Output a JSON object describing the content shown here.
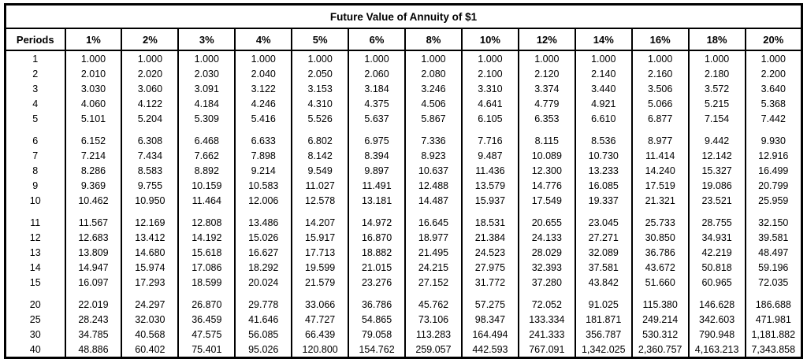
{
  "title": "Future Value of Annuity of $1",
  "table": {
    "periods_header": "Periods",
    "rate_headers": [
      "1%",
      "2%",
      "3%",
      "4%",
      "5%",
      "6%",
      "8%",
      "10%",
      "12%",
      "14%",
      "16%",
      "18%",
      "20%"
    ],
    "groups": [
      {
        "rows": [
          {
            "period": "1",
            "values": [
              "1.000",
              "1.000",
              "1.000",
              "1.000",
              "1.000",
              "1.000",
              "1.000",
              "1.000",
              "1.000",
              "1.000",
              "1.000",
              "1.000",
              "1.000"
            ]
          },
          {
            "period": "2",
            "values": [
              "2.010",
              "2.020",
              "2.030",
              "2.040",
              "2.050",
              "2.060",
              "2.080",
              "2.100",
              "2.120",
              "2.140",
              "2.160",
              "2.180",
              "2.200"
            ]
          },
          {
            "period": "3",
            "values": [
              "3.030",
              "3.060",
              "3.091",
              "3.122",
              "3.153",
              "3.184",
              "3.246",
              "3.310",
              "3.374",
              "3.440",
              "3.506",
              "3.572",
              "3.640"
            ]
          },
          {
            "period": "4",
            "values": [
              "4.060",
              "4.122",
              "4.184",
              "4.246",
              "4.310",
              "4.375",
              "4.506",
              "4.641",
              "4.779",
              "4.921",
              "5.066",
              "5.215",
              "5.368"
            ]
          },
          {
            "period": "5",
            "values": [
              "5.101",
              "5.204",
              "5.309",
              "5.416",
              "5.526",
              "5.637",
              "5.867",
              "6.105",
              "6.353",
              "6.610",
              "6.877",
              "7.154",
              "7.442"
            ]
          }
        ]
      },
      {
        "rows": [
          {
            "period": "6",
            "values": [
              "6.152",
              "6.308",
              "6.468",
              "6.633",
              "6.802",
              "6.975",
              "7.336",
              "7.716",
              "8.115",
              "8.536",
              "8.977",
              "9.442",
              "9.930"
            ]
          },
          {
            "period": "7",
            "values": [
              "7.214",
              "7.434",
              "7.662",
              "7.898",
              "8.142",
              "8.394",
              "8.923",
              "9.487",
              "10.089",
              "10.730",
              "11.414",
              "12.142",
              "12.916"
            ]
          },
          {
            "period": "8",
            "values": [
              "8.286",
              "8.583",
              "8.892",
              "9.214",
              "9.549",
              "9.897",
              "10.637",
              "11.436",
              "12.300",
              "13.233",
              "14.240",
              "15.327",
              "16.499"
            ]
          },
          {
            "period": "9",
            "values": [
              "9.369",
              "9.755",
              "10.159",
              "10.583",
              "11.027",
              "11.491",
              "12.488",
              "13.579",
              "14.776",
              "16.085",
              "17.519",
              "19.086",
              "20.799"
            ]
          },
          {
            "period": "10",
            "values": [
              "10.462",
              "10.950",
              "11.464",
              "12.006",
              "12.578",
              "13.181",
              "14.487",
              "15.937",
              "17.549",
              "19.337",
              "21.321",
              "23.521",
              "25.959"
            ]
          }
        ]
      },
      {
        "rows": [
          {
            "period": "11",
            "values": [
              "11.567",
              "12.169",
              "12.808",
              "13.486",
              "14.207",
              "14.972",
              "16.645",
              "18.531",
              "20.655",
              "23.045",
              "25.733",
              "28.755",
              "32.150"
            ]
          },
          {
            "period": "12",
            "values": [
              "12.683",
              "13.412",
              "14.192",
              "15.026",
              "15.917",
              "16.870",
              "18.977",
              "21.384",
              "24.133",
              "27.271",
              "30.850",
              "34.931",
              "39.581"
            ]
          },
          {
            "period": "13",
            "values": [
              "13.809",
              "14.680",
              "15.618",
              "16.627",
              "17.713",
              "18.882",
              "21.495",
              "24.523",
              "28.029",
              "32.089",
              "36.786",
              "42.219",
              "48.497"
            ]
          },
          {
            "period": "14",
            "values": [
              "14.947",
              "15.974",
              "17.086",
              "18.292",
              "19.599",
              "21.015",
              "24.215",
              "27.975",
              "32.393",
              "37.581",
              "43.672",
              "50.818",
              "59.196"
            ]
          },
          {
            "period": "15",
            "values": [
              "16.097",
              "17.293",
              "18.599",
              "20.024",
              "21.579",
              "23.276",
              "27.152",
              "31.772",
              "37.280",
              "43.842",
              "51.660",
              "60.965",
              "72.035"
            ]
          }
        ]
      },
      {
        "rows": [
          {
            "period": "20",
            "values": [
              "22.019",
              "24.297",
              "26.870",
              "29.778",
              "33.066",
              "36.786",
              "45.762",
              "57.275",
              "72.052",
              "91.025",
              "115.380",
              "146.628",
              "186.688"
            ]
          },
          {
            "period": "25",
            "values": [
              "28.243",
              "32.030",
              "36.459",
              "41.646",
              "47.727",
              "54.865",
              "73.106",
              "98.347",
              "133.334",
              "181.871",
              "249.214",
              "342.603",
              "471.981"
            ]
          },
          {
            "period": "30",
            "values": [
              "34.785",
              "40.568",
              "47.575",
              "56.085",
              "66.439",
              "79.058",
              "113.283",
              "164.494",
              "241.333",
              "356.787",
              "530.312",
              "790.948",
              "1,181.882"
            ]
          },
          {
            "period": "40",
            "values": [
              "48.886",
              "60.402",
              "75.401",
              "95.026",
              "120.800",
              "154.762",
              "259.057",
              "442.593",
              "767.091",
              "1,342.025",
              "2,360.757",
              "4,163.213",
              "7,343.858"
            ]
          }
        ]
      }
    ]
  }
}
